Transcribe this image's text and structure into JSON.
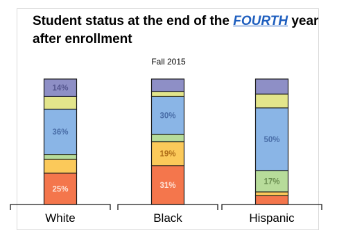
{
  "title": {
    "before": "Student status at the end of the ",
    "highlight": "FOURTH",
    "after": " year after enrollment"
  },
  "chart_data": {
    "type": "bar",
    "stacked": true,
    "title": "Student status at the end of the FOURTH year after enrollment",
    "subtitle": "Fall 2015",
    "categories": [
      "White",
      "Black",
      "Hispanic"
    ],
    "ylim": [
      0,
      100
    ],
    "grid": false,
    "legend": "none",
    "colors": [
      "#f4764c",
      "#fbc95a",
      "#b7dc9a",
      "#8ab5e6",
      "#e3e58b",
      "#8e8fc6"
    ],
    "series": [
      {
        "values": [
          25,
          31,
          7
        ]
      },
      {
        "values": [
          11,
          19,
          3
        ]
      },
      {
        "values": [
          4,
          6,
          17
        ]
      },
      {
        "values": [
          36,
          30,
          50
        ]
      },
      {
        "values": [
          10,
          4,
          11
        ]
      },
      {
        "values": [
          14,
          10,
          12
        ]
      }
    ],
    "data_labels": [
      [
        "25%",
        "31%",
        ""
      ],
      [
        "",
        "19%",
        ""
      ],
      [
        "",
        "",
        "17%"
      ],
      [
        "36%",
        "30%",
        "50%"
      ],
      [
        "",
        "",
        ""
      ],
      [
        "14%",
        "",
        ""
      ]
    ],
    "label_colors": [
      "#fde2d6",
      "#b06f1a",
      "#6a8e50",
      "#4a6ea8",
      "#7a7a3a",
      "#55568f"
    ]
  }
}
